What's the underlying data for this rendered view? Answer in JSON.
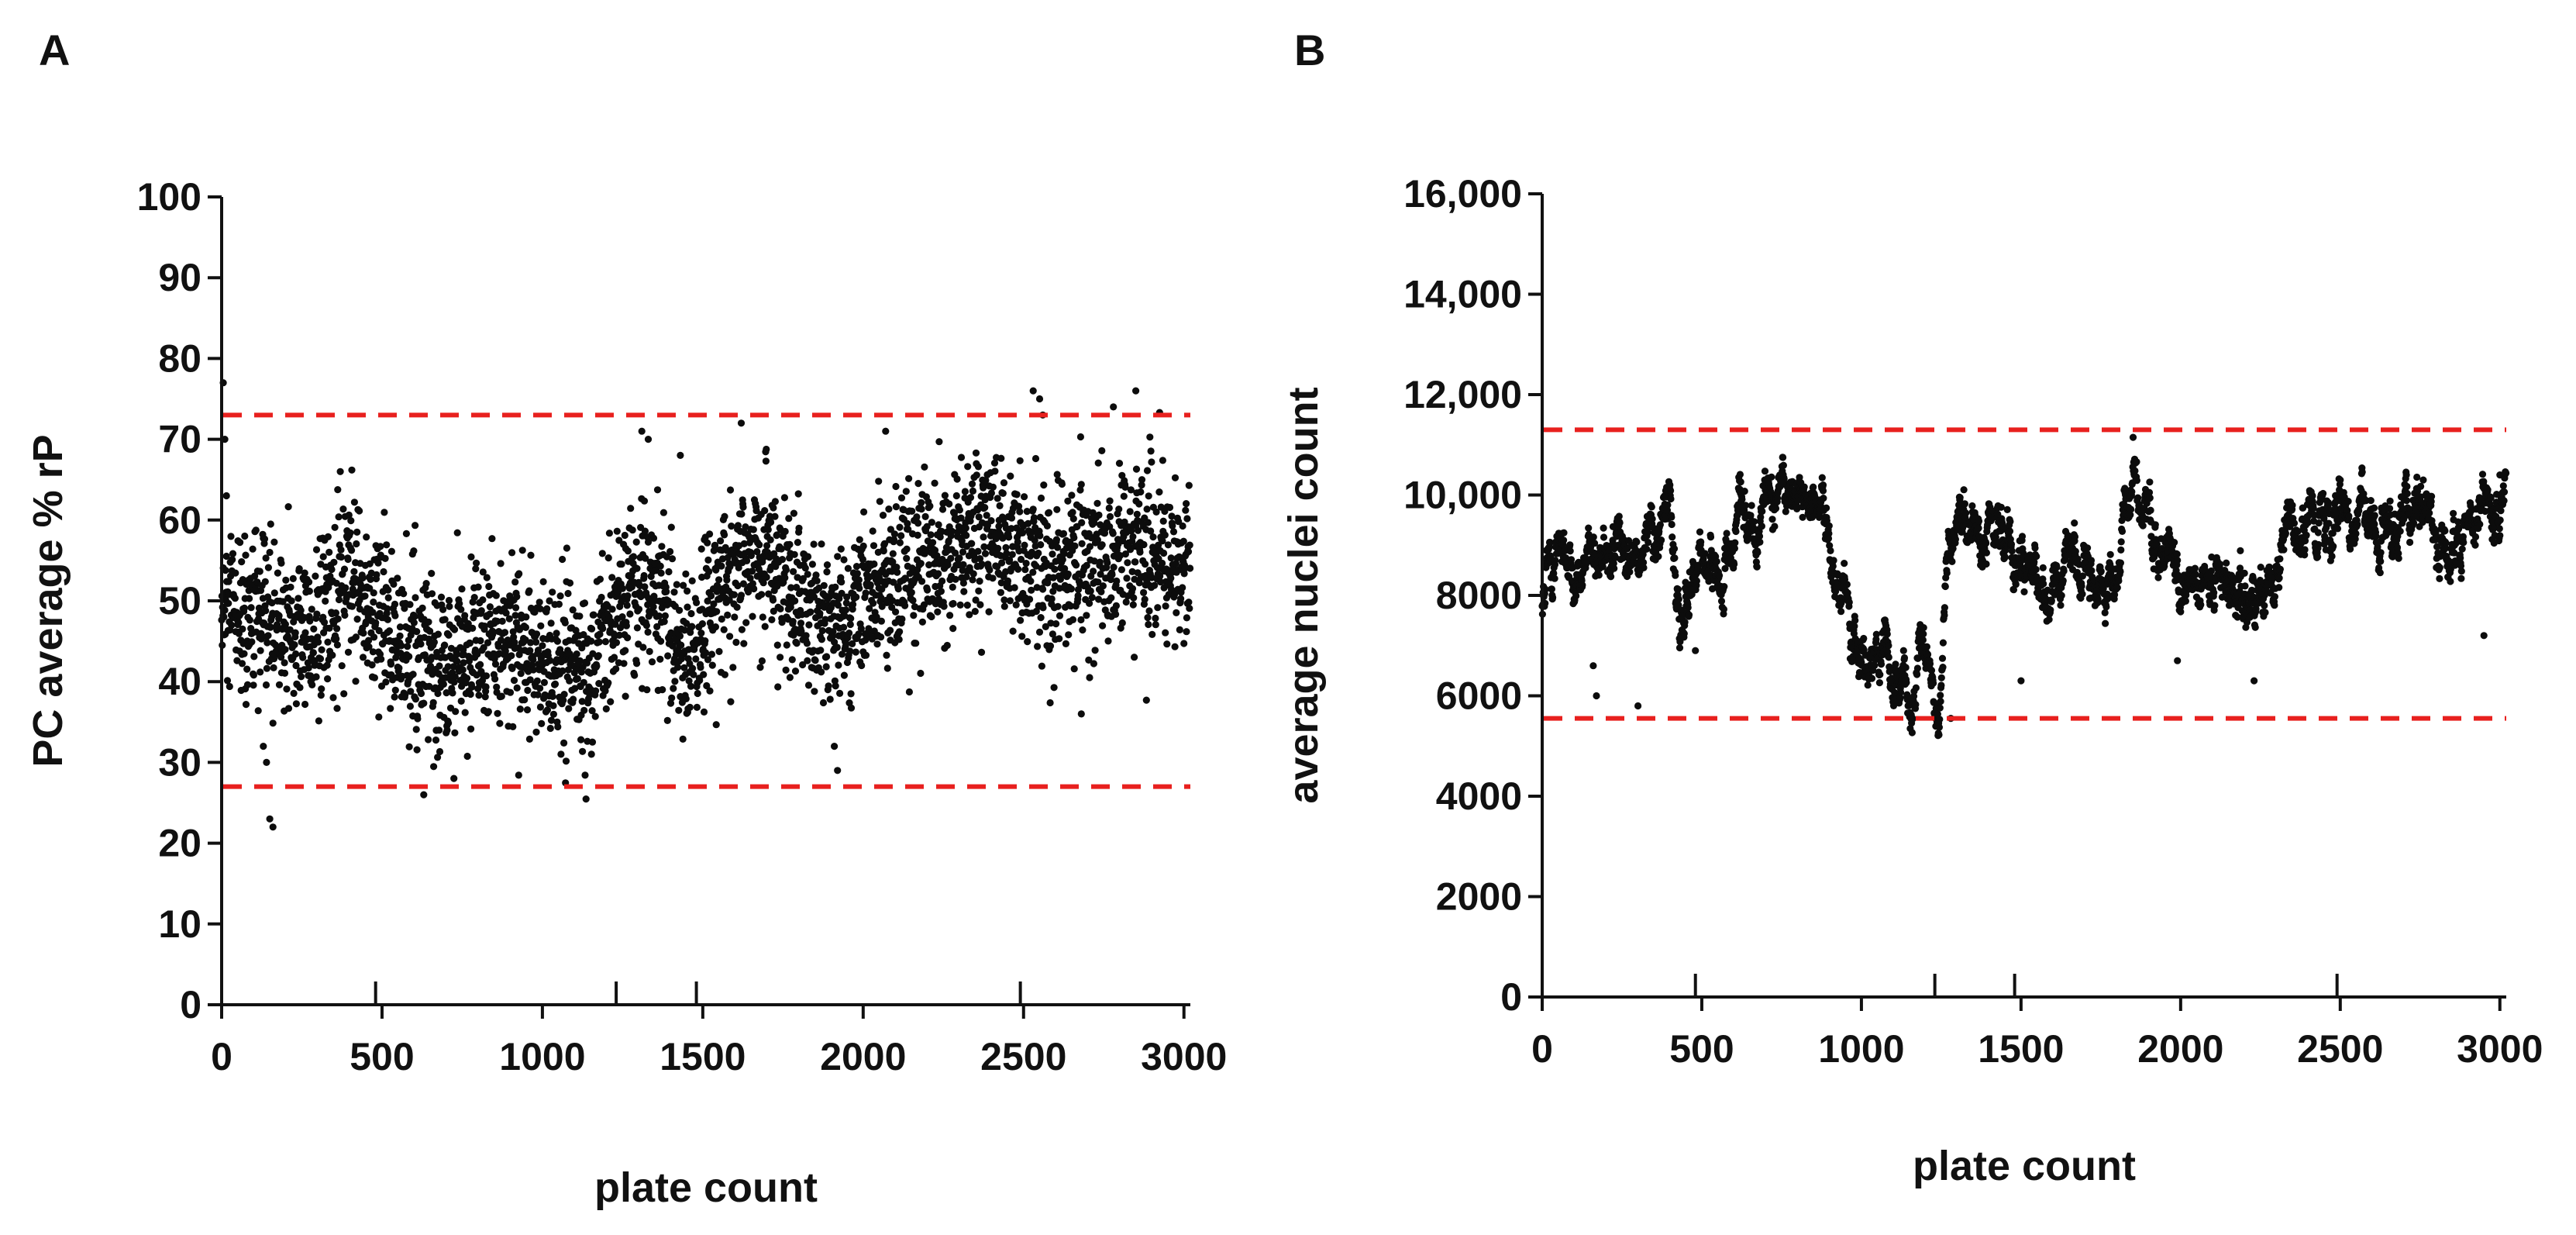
{
  "panels": {
    "a": "A",
    "b": "B"
  },
  "chart_data": [
    {
      "type": "scatter",
      "panel": "A",
      "xlabel": "plate count",
      "ylabel": "PC average % rP",
      "xlim": [
        0,
        3020
      ],
      "ylim": [
        0,
        100
      ],
      "x_ticks": [
        0,
        500,
        1000,
        1500,
        2000,
        2500,
        3000
      ],
      "x_tick_labels": [
        "0",
        "500",
        "1000",
        "1500",
        "2000",
        "2500",
        "3000"
      ],
      "x_upper_ticks": [
        480,
        1230,
        1480,
        2490
      ],
      "y_ticks": [
        0,
        10,
        20,
        30,
        40,
        50,
        60,
        70,
        80,
        90,
        100
      ],
      "y_tick_labels": [
        "0",
        "10",
        "20",
        "30",
        "40",
        "50",
        "60",
        "70",
        "80",
        "90",
        "100"
      ],
      "thresholds": [
        73,
        27
      ],
      "threshold_color": "#e8201e",
      "point_color": "#0c0c0c",
      "n_points": 3020,
      "trend_knots": [
        [
          0,
          48
        ],
        [
          150,
          47
        ],
        [
          300,
          46
        ],
        [
          400,
          53
        ],
        [
          500,
          47
        ],
        [
          650,
          42
        ],
        [
          800,
          44
        ],
        [
          900,
          45
        ],
        [
          1050,
          42
        ],
        [
          1150,
          41
        ],
        [
          1250,
          50
        ],
        [
          1350,
          51
        ],
        [
          1450,
          43
        ],
        [
          1550,
          52
        ],
        [
          1700,
          57
        ],
        [
          1800,
          49
        ],
        [
          1950,
          46
        ],
        [
          2050,
          52
        ],
        [
          2200,
          55
        ],
        [
          2400,
          60
        ],
        [
          2500,
          55
        ],
        [
          2600,
          54
        ],
        [
          2800,
          57
        ],
        [
          3020,
          54
        ]
      ],
      "noise_sd": 5.2,
      "spike_points": [
        [
          5,
          77
        ],
        [
          10,
          70
        ],
        [
          15,
          63
        ],
        [
          130,
          32
        ],
        [
          140,
          30
        ],
        [
          150,
          23
        ],
        [
          160,
          22
        ],
        [
          370,
          66
        ],
        [
          630,
          26
        ],
        [
          1310,
          71
        ],
        [
          1330,
          70
        ],
        [
          1430,
          68
        ],
        [
          1620,
          72
        ],
        [
          1910,
          32
        ],
        [
          1920,
          29
        ],
        [
          2070,
          71
        ],
        [
          2530,
          76
        ],
        [
          2550,
          75
        ],
        [
          2560,
          73
        ],
        [
          2680,
          36
        ],
        [
          2780,
          74
        ],
        [
          2850,
          76
        ]
      ]
    },
    {
      "type": "scatter",
      "panel": "B",
      "xlabel": "plate count",
      "ylabel": "average nuclei count",
      "xlim": [
        0,
        3020
      ],
      "ylim": [
        0,
        16000
      ],
      "x_ticks": [
        0,
        500,
        1000,
        1500,
        2000,
        2500,
        3000
      ],
      "x_tick_labels": [
        "0",
        "500",
        "1000",
        "1500",
        "2000",
        "2500",
        "3000"
      ],
      "x_upper_ticks": [
        480,
        1230,
        1480,
        2490
      ],
      "y_ticks": [
        0,
        2000,
        4000,
        6000,
        8000,
        10000,
        12000,
        14000,
        16000
      ],
      "y_tick_labels": [
        "0",
        "2000",
        "4000",
        "6000",
        "8000",
        "10,000",
        "12,000",
        "14,000",
        "16,000"
      ],
      "thresholds": [
        11300,
        5550
      ],
      "threshold_color": "#e8201e",
      "point_color": "#0c0c0c",
      "n_points": 3020,
      "trend_knots": [
        [
          0,
          8000
        ],
        [
          50,
          9600
        ],
        [
          100,
          8200
        ],
        [
          200,
          8500
        ],
        [
          300,
          9100
        ],
        [
          400,
          9500
        ],
        [
          450,
          7600
        ],
        [
          550,
          8500
        ],
        [
          650,
          9300
        ],
        [
          750,
          9600
        ],
        [
          880,
          10000
        ],
        [
          950,
          8000
        ],
        [
          1000,
          6500
        ],
        [
          1080,
          6400
        ],
        [
          1200,
          5900
        ],
        [
          1240,
          5600
        ],
        [
          1270,
          9100
        ],
        [
          1400,
          9300
        ],
        [
          1500,
          8500
        ],
        [
          1600,
          8300
        ],
        [
          1800,
          8200
        ],
        [
          1830,
          10100
        ],
        [
          2000,
          8400
        ],
        [
          2150,
          8100
        ],
        [
          2250,
          8300
        ],
        [
          2350,
          9600
        ],
        [
          2500,
          9300
        ],
        [
          2650,
          8800
        ],
        [
          2750,
          9800
        ],
        [
          2850,
          9000
        ],
        [
          3020,
          10200
        ]
      ],
      "noise_sd": 420,
      "spike_points": [
        [
          160,
          6600
        ],
        [
          170,
          6000
        ],
        [
          300,
          5800
        ],
        [
          480,
          6900
        ],
        [
          880,
          10200
        ],
        [
          1280,
          5550
        ],
        [
          1500,
          6300
        ],
        [
          1990,
          6700
        ],
        [
          2230,
          6300
        ],
        [
          2760,
          10300
        ],
        [
          2950,
          7200
        ],
        [
          3000,
          10400
        ]
      ]
    }
  ]
}
